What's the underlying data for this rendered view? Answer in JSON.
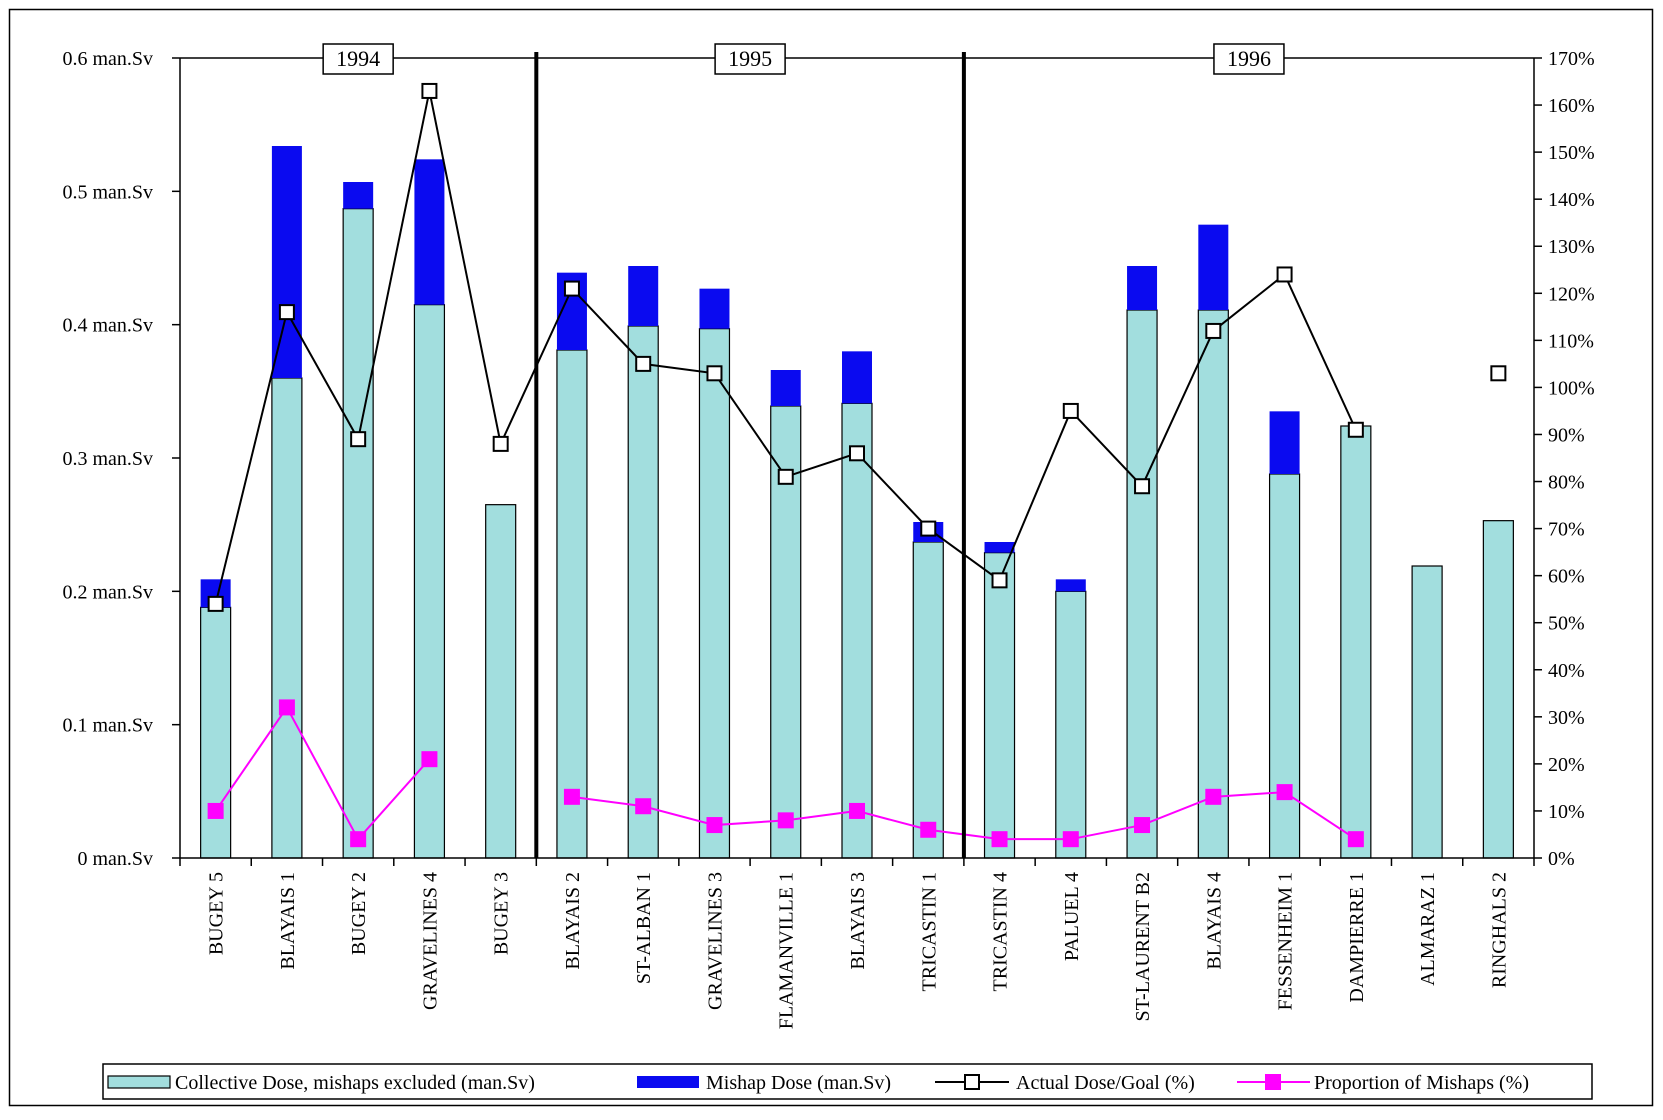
{
  "chart_data": {
    "type": "bar",
    "categories": [
      "BUGEY 5",
      "BLAYAIS 1",
      "BUGEY 2",
      "GRAVELINES 4",
      "BUGEY 3",
      "BLAYAIS 2",
      "ST-ALBAN 1",
      "GRAVELINES 3",
      "FLAMANVILLE 1",
      "BLAYAIS 3",
      "TRICASTIN 1",
      "TRICASTIN 4",
      "PALUEL 4",
      "ST-LAURENT B2",
      "BLAYAIS 4",
      "FESSENHEIM 1",
      "DAMPIERRE 1",
      "ALMARAZ 1",
      "RINGHALS 2"
    ],
    "series": [
      {
        "name": "Collective Dose, mishaps excluded (man.Sv)",
        "kind": "bar",
        "axis": "left",
        "color": "#A2DEDE",
        "values": [
          0.188,
          0.36,
          0.487,
          0.415,
          0.265,
          0.381,
          0.399,
          0.397,
          0.339,
          0.341,
          0.237,
          0.229,
          0.2,
          0.411,
          0.411,
          0.288,
          0.324,
          0.219,
          0.253
        ]
      },
      {
        "name": "Mishap Dose (man.Sv)",
        "kind": "bar-stack",
        "axis": "left",
        "color": "#0A0AF0",
        "values": [
          0.021,
          0.174,
          0.02,
          0.109,
          0,
          0.058,
          0.045,
          0.03,
          0.027,
          0.039,
          0.015,
          0.008,
          0.009,
          0.033,
          0.064,
          0.047,
          0,
          0,
          0
        ]
      },
      {
        "name": "Actual Dose/Goal (%)",
        "kind": "line",
        "axis": "right",
        "color": "#000000",
        "marker": "square-open",
        "values": [
          54,
          116,
          89,
          163,
          88,
          121,
          105,
          103,
          81,
          86,
          70,
          59,
          95,
          79,
          112,
          124,
          91,
          null,
          103
        ]
      },
      {
        "name": "Proportion of Mishaps (%)",
        "kind": "line",
        "axis": "right",
        "color": "#FF00FF",
        "marker": "square-filled",
        "values": [
          10,
          32,
          4,
          21,
          null,
          13,
          11,
          7,
          8,
          10,
          6,
          4,
          4,
          7,
          13,
          14,
          4,
          null,
          null
        ]
      }
    ],
    "left_axis": {
      "ylim": [
        0,
        0.6
      ],
      "ticks": [
        "0 man.Sv",
        "0.1 man.Sv",
        "0.2 man.Sv",
        "0.3 man.Sv",
        "0.4 man.Sv",
        "0.5 man.Sv",
        "0.6 man.Sv"
      ]
    },
    "right_axis": {
      "ylim": [
        0,
        170
      ],
      "ticks": [
        "0%",
        "10%",
        "20%",
        "30%",
        "40%",
        "50%",
        "60%",
        "70%",
        "80%",
        "90%",
        "100%",
        "110%",
        "120%",
        "130%",
        "140%",
        "150%",
        "160%",
        "170%"
      ]
    },
    "year_groups": [
      {
        "label": "1994",
        "start": 0,
        "end": 4
      },
      {
        "label": "1995",
        "start": 5,
        "end": 10
      },
      {
        "label": "1996",
        "start": 11,
        "end": 18
      }
    ],
    "legend_position": "bottom",
    "grid": false
  }
}
